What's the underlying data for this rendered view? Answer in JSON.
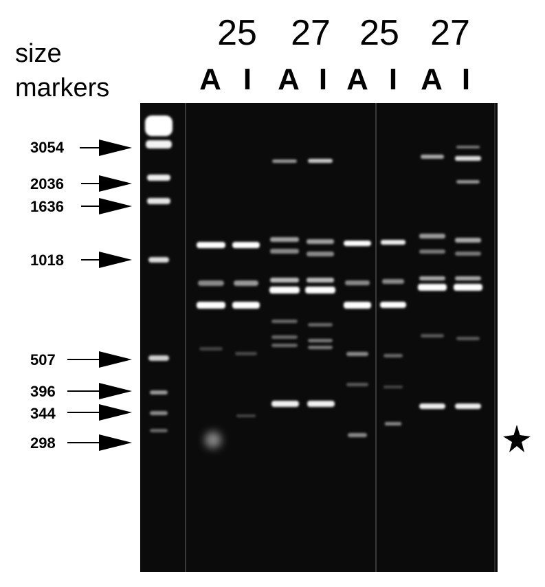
{
  "header": {
    "title_line1": "size",
    "title_line2": "markers"
  },
  "groups": [
    "25",
    "27",
    "25",
    "27"
  ],
  "lanes": [
    "A",
    "I",
    "A",
    "I",
    "A",
    "I",
    "A",
    "I"
  ],
  "markers": [
    "3054",
    "2036",
    "1636",
    "1018",
    "507",
    "396",
    "344",
    "298"
  ],
  "marker_values": [
    3054,
    2036,
    1636,
    1018,
    507,
    396,
    344,
    298
  ],
  "colors": {
    "gel": "#0b0b0b",
    "band": "#ffffff",
    "arrow": "#000000"
  },
  "annotation_icon": "star-icon"
}
